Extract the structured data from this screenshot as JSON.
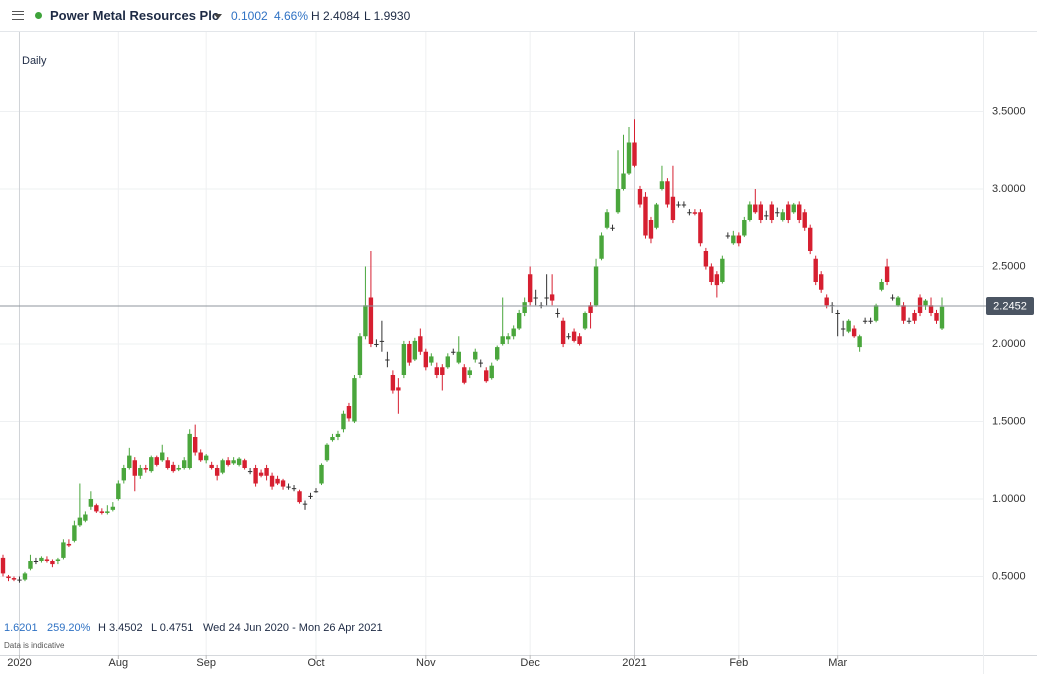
{
  "header": {
    "title": "Power Metal Resources Plc",
    "change": "0.1002",
    "change_pct": "4.66%",
    "high": "H 2.4084",
    "low": "L 1.9930"
  },
  "chart_data": {
    "type": "candlestick",
    "interval": "Daily",
    "categories": [
      null,
      null,
      null,
      "2020",
      null,
      null,
      null,
      null,
      null,
      null,
      null,
      null,
      null,
      null,
      null,
      null,
      null,
      null,
      null,
      null,
      null,
      "Aug",
      null,
      null,
      null,
      null,
      null,
      null,
      null,
      null,
      null,
      null,
      null,
      null,
      null,
      null,
      null,
      "Sep",
      null,
      null,
      null,
      null,
      null,
      null,
      null,
      null,
      null,
      null,
      null,
      null,
      null,
      null,
      null,
      null,
      null,
      null,
      null,
      "Oct",
      null,
      null,
      null,
      null,
      null,
      null,
      null,
      null,
      null,
      null,
      null,
      null,
      null,
      null,
      null,
      null,
      null,
      null,
      null,
      "Nov",
      null,
      null,
      null,
      null,
      null,
      null,
      null,
      null,
      null,
      null,
      null,
      null,
      null,
      null,
      null,
      null,
      null,
      null,
      "Dec",
      null,
      null,
      null,
      null,
      null,
      null,
      null,
      null,
      null,
      null,
      null,
      null,
      null,
      null,
      null,
      null,
      null,
      null,
      "2021",
      null,
      null,
      null,
      null,
      null,
      null,
      null,
      null,
      null,
      null,
      null,
      null,
      null,
      null,
      null,
      null,
      null,
      null,
      "Feb",
      null,
      null,
      null,
      null,
      null,
      null,
      null,
      null,
      null,
      null,
      null,
      null,
      null,
      null,
      null,
      null,
      null,
      "Mar",
      null,
      null,
      null,
      null,
      null,
      null,
      null,
      null,
      null,
      null,
      null,
      null,
      null,
      null,
      null,
      null,
      null,
      null,
      null
    ],
    "open": [
      0.62,
      0.5,
      0.49,
      0.48,
      0.48,
      0.55,
      0.6,
      0.6,
      0.61,
      0.6,
      0.6,
      0.62,
      0.71,
      0.73,
      0.83,
      0.86,
      0.95,
      0.96,
      0.92,
      0.91,
      0.93,
      1.0,
      1.12,
      1.2,
      1.25,
      1.15,
      1.2,
      1.18,
      1.27,
      1.25,
      1.25,
      1.22,
      1.19,
      1.2,
      1.2,
      1.4,
      1.3,
      1.25,
      1.22,
      1.2,
      1.17,
      1.25,
      1.23,
      1.22,
      1.25,
      1.18,
      1.2,
      1.17,
      1.2,
      1.15,
      1.13,
      1.12,
      1.08,
      1.07,
      1.05,
      0.97,
      1.02,
      1.05,
      1.1,
      1.25,
      1.38,
      1.4,
      1.45,
      1.6,
      1.5,
      1.8,
      2.05,
      2.3,
      2.0,
      2.02,
      1.9,
      1.8,
      1.72,
      1.8,
      2.0,
      1.9,
      2.05,
      1.95,
      1.88,
      1.85,
      1.85,
      1.85,
      1.95,
      1.88,
      1.85,
      1.8,
      1.9,
      1.88,
      1.83,
      1.78,
      1.9,
      2.0,
      2.03,
      2.05,
      2.1,
      2.2,
      2.45,
      2.3,
      2.25,
      2.3,
      2.32,
      2.2,
      2.15,
      2.05,
      2.08,
      2.05,
      2.1,
      2.25,
      2.25,
      2.55,
      2.75,
      2.75,
      2.85,
      3.0,
      3.1,
      3.3,
      3.0,
      2.95,
      2.8,
      2.75,
      3.0,
      3.05,
      2.95,
      2.9,
      2.9,
      2.85,
      2.85,
      2.85,
      2.6,
      2.5,
      2.45,
      2.4,
      2.7,
      2.65,
      2.7,
      2.7,
      2.8,
      2.9,
      2.9,
      2.83,
      2.9,
      2.85,
      2.8,
      2.9,
      2.85,
      2.9,
      2.85,
      2.75,
      2.55,
      2.45,
      2.3,
      2.25,
      2.2,
      2.1,
      2.08,
      2.1,
      1.98,
      2.15,
      2.15,
      2.15,
      2.35,
      2.5,
      2.3,
      2.25,
      2.25,
      2.15,
      2.2,
      2.3,
      2.25,
      2.25,
      2.2,
      2.1
    ],
    "high": [
      0.64,
      0.51,
      0.5,
      0.5,
      0.53,
      0.64,
      0.62,
      0.63,
      0.63,
      0.61,
      0.62,
      0.74,
      0.74,
      0.86,
      1.1,
      0.92,
      1.05,
      0.97,
      0.94,
      0.96,
      0.98,
      1.12,
      1.22,
      1.33,
      1.27,
      1.22,
      1.22,
      1.28,
      1.28,
      1.35,
      1.27,
      1.24,
      1.22,
      1.27,
      1.45,
      1.48,
      1.32,
      1.29,
      1.24,
      1.22,
      1.26,
      1.27,
      1.27,
      1.27,
      1.26,
      1.2,
      1.22,
      1.19,
      1.22,
      1.17,
      1.15,
      1.13,
      1.1,
      1.09,
      1.06,
      0.99,
      1.04,
      1.07,
      1.23,
      1.36,
      1.42,
      1.44,
      1.57,
      1.62,
      1.8,
      2.07,
      2.5,
      2.6,
      2.03,
      2.15,
      1.95,
      1.83,
      1.78,
      2.02,
      2.02,
      2.04,
      2.1,
      1.97,
      1.94,
      1.88,
      1.87,
      1.94,
      1.97,
      2.05,
      1.87,
      1.85,
      1.97,
      1.9,
      1.85,
      1.88,
      1.99,
      2.3,
      2.07,
      2.12,
      2.22,
      2.3,
      2.5,
      2.35,
      2.27,
      2.45,
      2.45,
      2.23,
      2.17,
      2.07,
      2.1,
      2.07,
      2.21,
      2.27,
      2.55,
      2.72,
      2.87,
      2.77,
      3.25,
      3.35,
      3.4,
      3.45,
      3.02,
      2.98,
      2.82,
      2.91,
      3.15,
      3.07,
      3.15,
      2.92,
      2.92,
      2.87,
      2.87,
      2.87,
      2.62,
      2.52,
      2.47,
      2.57,
      2.72,
      2.73,
      2.72,
      2.82,
      2.92,
      3.0,
      2.92,
      2.86,
      2.92,
      2.88,
      2.87,
      2.92,
      2.91,
      2.92,
      2.87,
      2.77,
      2.57,
      2.47,
      2.32,
      2.27,
      2.22,
      2.15,
      2.16,
      2.12,
      2.06,
      2.17,
      2.17,
      2.26,
      2.42,
      2.55,
      2.32,
      2.31,
      2.27,
      2.17,
      2.22,
      2.32,
      2.29,
      2.3,
      2.22,
      2.3
    ],
    "low": [
      0.5,
      0.47,
      0.47,
      0.46,
      0.47,
      0.54,
      0.58,
      0.59,
      0.59,
      0.56,
      0.58,
      0.61,
      0.69,
      0.72,
      0.82,
      0.85,
      0.93,
      0.91,
      0.9,
      0.9,
      0.92,
      0.99,
      1.1,
      1.19,
      1.05,
      1.13,
      1.17,
      1.17,
      1.21,
      1.24,
      1.19,
      1.17,
      1.18,
      1.19,
      1.19,
      1.28,
      1.24,
      1.23,
      1.19,
      1.12,
      1.16,
      1.21,
      1.22,
      1.21,
      1.19,
      1.16,
      1.08,
      1.14,
      1.12,
      1.06,
      1.09,
      1.06,
      1.06,
      1.05,
      0.97,
      0.93,
      1.0,
      1.04,
      1.09,
      1.24,
      1.37,
      1.38,
      1.43,
      1.5,
      1.49,
      1.78,
      2.03,
      1.98,
      1.98,
      1.95,
      1.85,
      1.68,
      1.55,
      1.78,
      1.86,
      1.89,
      1.93,
      1.83,
      1.86,
      1.78,
      1.7,
      1.84,
      1.93,
      1.87,
      1.74,
      1.78,
      1.88,
      1.85,
      1.75,
      1.77,
      1.89,
      1.99,
      2.0,
      2.03,
      2.09,
      2.18,
      2.25,
      2.25,
      2.23,
      2.25,
      2.25,
      2.17,
      1.98,
      2.03,
      2.01,
      1.99,
      2.09,
      2.1,
      2.24,
      2.54,
      2.74,
      2.73,
      2.84,
      2.99,
      3.09,
      3.14,
      2.88,
      2.68,
      2.65,
      2.74,
      2.99,
      2.88,
      2.78,
      2.88,
      2.88,
      2.83,
      2.83,
      2.63,
      2.48,
      2.38,
      2.3,
      2.39,
      2.68,
      2.64,
      2.63,
      2.69,
      2.79,
      2.84,
      2.78,
      2.8,
      2.78,
      2.82,
      2.79,
      2.78,
      2.84,
      2.78,
      2.73,
      2.58,
      2.38,
      2.33,
      2.23,
      2.2,
      2.05,
      2.05,
      2.07,
      2.04,
      1.95,
      2.13,
      2.13,
      2.14,
      2.34,
      2.38,
      2.28,
      2.24,
      2.13,
      2.13,
      2.13,
      2.18,
      2.22,
      2.18,
      2.13,
      2.09
    ],
    "close": [
      0.52,
      0.49,
      0.48,
      0.48,
      0.52,
      0.6,
      0.6,
      0.62,
      0.6,
      0.58,
      0.61,
      0.72,
      0.7,
      0.83,
      0.88,
      0.9,
      1.0,
      0.92,
      0.91,
      0.92,
      0.95,
      1.1,
      1.2,
      1.28,
      1.15,
      1.2,
      1.19,
      1.27,
      1.22,
      1.3,
      1.2,
      1.18,
      1.2,
      1.25,
      1.42,
      1.3,
      1.25,
      1.28,
      1.2,
      1.15,
      1.25,
      1.22,
      1.25,
      1.26,
      1.2,
      1.18,
      1.1,
      1.15,
      1.15,
      1.08,
      1.1,
      1.08,
      1.08,
      1.07,
      0.98,
      0.97,
      1.02,
      1.05,
      1.22,
      1.35,
      1.4,
      1.42,
      1.55,
      1.52,
      1.78,
      2.05,
      2.25,
      2.0,
      2.0,
      2.02,
      1.9,
      1.7,
      1.7,
      2.0,
      1.88,
      2.02,
      1.95,
      1.85,
      1.92,
      1.8,
      1.8,
      1.92,
      1.95,
      1.95,
      1.75,
      1.83,
      1.95,
      1.88,
      1.76,
      1.86,
      1.98,
      2.05,
      2.05,
      2.1,
      2.2,
      2.27,
      2.27,
      2.3,
      2.25,
      2.3,
      2.28,
      2.2,
      2.0,
      2.05,
      2.02,
      2.0,
      2.2,
      2.2,
      2.5,
      2.7,
      2.85,
      2.75,
      3.0,
      3.1,
      3.3,
      3.15,
      2.9,
      2.7,
      2.68,
      2.9,
      3.05,
      2.9,
      2.8,
      2.9,
      2.9,
      2.85,
      2.84,
      2.65,
      2.5,
      2.4,
      2.38,
      2.55,
      2.7,
      2.7,
      2.65,
      2.8,
      2.9,
      2.85,
      2.8,
      2.83,
      2.8,
      2.85,
      2.85,
      2.8,
      2.9,
      2.8,
      2.75,
      2.6,
      2.4,
      2.35,
      2.25,
      2.25,
      2.2,
      2.1,
      2.15,
      2.05,
      2.05,
      2.15,
      2.15,
      2.25,
      2.4,
      2.4,
      2.3,
      2.3,
      2.15,
      2.15,
      2.15,
      2.2,
      2.28,
      2.2,
      2.15,
      2.24
    ],
    "up_color": "#4aa63c",
    "down_color": "#d61f30",
    "flat_color": "#333333",
    "ylim": [
      0,
      4
    ],
    "yticks": [
      {
        "value": 0.5,
        "label": "0.5000"
      },
      {
        "value": 1,
        "label": "1.0000"
      },
      {
        "value": 1.5,
        "label": "1.5000"
      },
      {
        "value": 2,
        "label": "2.0000"
      },
      {
        "value": 2.5,
        "label": "2.5000"
      },
      {
        "value": 3,
        "label": "3.0000"
      },
      {
        "value": 3.5,
        "label": "3.5000"
      }
    ],
    "grid": true,
    "last_price": 2.2452
  },
  "footer": {
    "change": "1.6201",
    "change_pct": "259.20%",
    "high": "H 3.4502",
    "low": "L 0.4751",
    "range": "Wed 24 Jun 2020 - Mon 26 Apr 2021",
    "note": "Data is indicative"
  }
}
